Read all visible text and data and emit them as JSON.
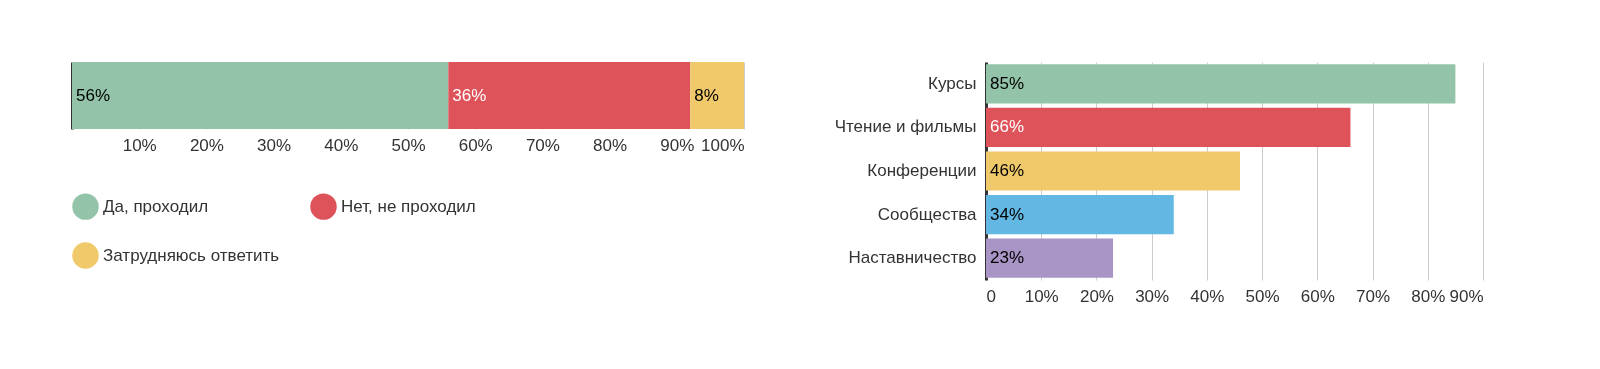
{
  "chart_data": [
    {
      "type": "bar",
      "orientation": "horizontal",
      "stacked": true,
      "categories": [
        null
      ],
      "series": [
        {
          "name": "Да, проходил",
          "color": "#93c4aa",
          "values": [
            56
          ]
        },
        {
          "name": "Нет, не проходил",
          "color": "#de535a",
          "values": [
            36
          ]
        },
        {
          "name": "Затрудняюсь ответить",
          "color": "#f0c96b",
          "values": [
            8
          ]
        }
      ],
      "xlim": [
        0,
        100
      ],
      "xticks": [
        {
          "value": 10,
          "label": "10%"
        },
        {
          "value": 20,
          "label": "20%"
        },
        {
          "value": 30,
          "label": "30%"
        },
        {
          "value": 40,
          "label": "40%"
        },
        {
          "value": 50,
          "label": "50%"
        },
        {
          "value": 60,
          "label": "60%"
        },
        {
          "value": 70,
          "label": "70%"
        },
        {
          "value": 80,
          "label": "80%"
        },
        {
          "value": 90,
          "label": "90%"
        },
        {
          "value": 100,
          "label": "100%"
        }
      ],
      "value_labels": [
        [
          "56%"
        ],
        [
          "36%"
        ],
        [
          "8%"
        ]
      ],
      "grid": "x",
      "legend": "bottom"
    },
    {
      "type": "bar",
      "orientation": "horizontal",
      "categories": [
        "Курсы",
        "Чтение и фильмы",
        "Конференции",
        "Сообщества",
        "Наставничество"
      ],
      "values": [
        85,
        66,
        46,
        34,
        23
      ],
      "colors": [
        "#93c4aa",
        "#de535a",
        "#f0c96b",
        "#62b7e3",
        "#a994c6"
      ],
      "value_labels": [
        "85%",
        "66%",
        "46%",
        "34%",
        "23%"
      ],
      "xlim": [
        0,
        90
      ],
      "xticks": [
        0,
        {
          "value": 10,
          "label": "10%"
        },
        {
          "value": 20,
          "label": "20%"
        },
        {
          "value": 30,
          "label": "30%"
        },
        {
          "value": 40,
          "label": "40%"
        },
        {
          "value": 50,
          "label": "50%"
        },
        {
          "value": 60,
          "label": "60%"
        },
        {
          "value": 70,
          "label": "70%"
        },
        {
          "value": 80,
          "label": "80%"
        },
        {
          "value": 90,
          "label": "90%"
        }
      ],
      "grid": "x",
      "legend": false
    }
  ]
}
